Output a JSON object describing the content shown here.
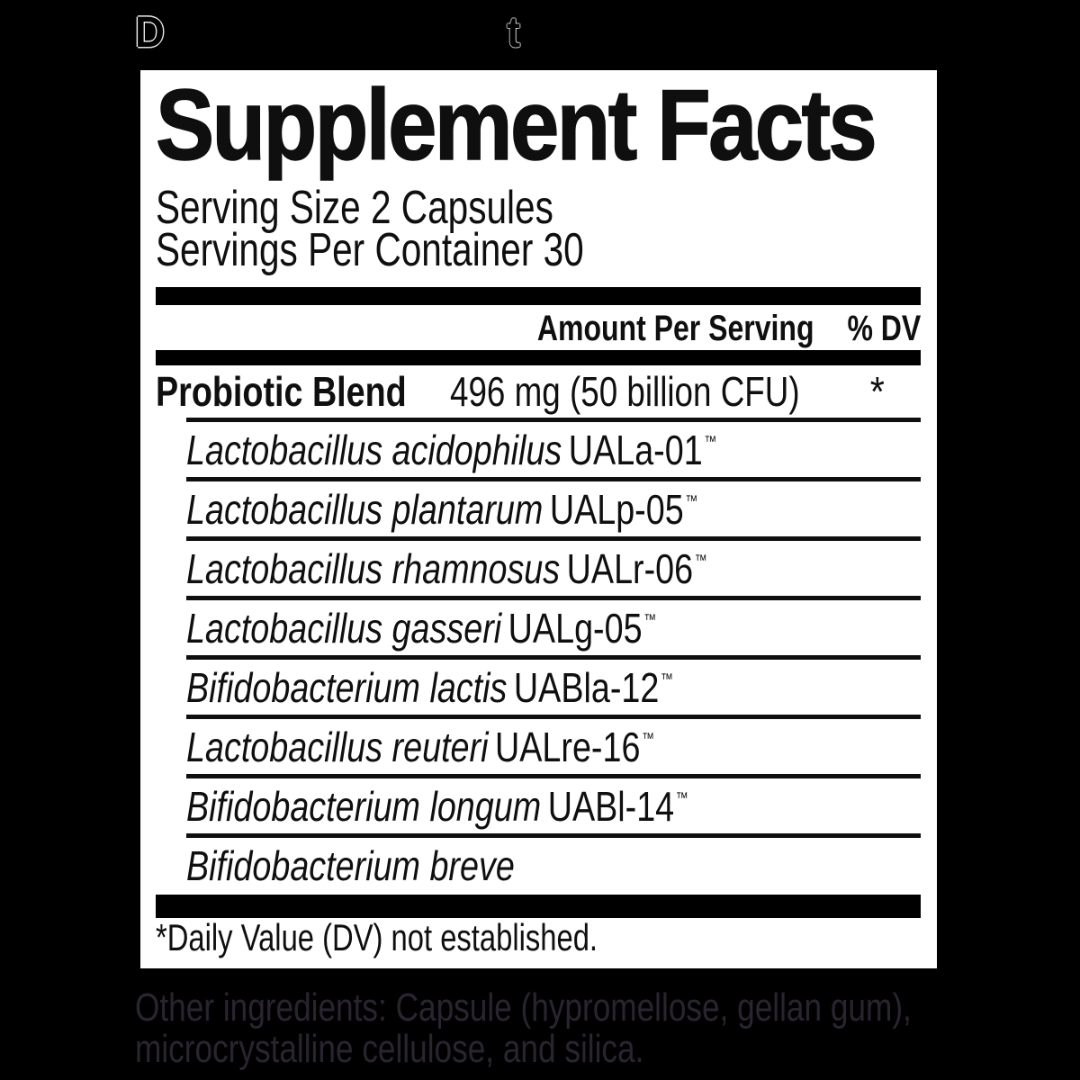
{
  "top_heading": {
    "text": "Dietary Supplement"
  },
  "panel": {
    "title": "Supplement Facts",
    "serving_size": "Serving Size 2 Capsules",
    "servings_per_container": "Servings Per Container 30",
    "column_headers": {
      "amount": "Amount Per Serving",
      "dv": "% DV"
    },
    "blend": {
      "name": "Probiotic Blend",
      "amount": "496 mg (50 billion CFU)",
      "dv": "*"
    },
    "ingredients": [
      {
        "species": "Lactobacillus acidophilus",
        "strain": "UALa-01",
        "tm": "™"
      },
      {
        "species": "Lactobacillus plantarum",
        "strain": "UALp-05",
        "tm": "™"
      },
      {
        "species": "Lactobacillus rhamnosus",
        "strain": "UALr-06",
        "tm": "™"
      },
      {
        "species": "Lactobacillus gasseri",
        "strain": "UALg-05",
        "tm": "™"
      },
      {
        "species": "Bifidobacterium lactis",
        "strain": "UABla-12",
        "tm": "™"
      },
      {
        "species": "Lactobacillus reuteri",
        "strain": "UALre-16",
        "tm": "™"
      },
      {
        "species": "Bifidobacterium longum",
        "strain": "UABl-14",
        "tm": "™"
      },
      {
        "species": "Bifidobacterium breve",
        "strain": "",
        "tm": ""
      }
    ],
    "footnote": "*Daily Value (DV) not established."
  },
  "other_ingredients": {
    "line1": "Other ingredients: Capsule (hypromellose, gellan gum),",
    "line2": "microcrystalline cellulose, and silica."
  },
  "colors": {
    "page_background": "#000000",
    "panel_background": "#ffffff",
    "ink": "#0f0f0f",
    "footer_ink": "#2a2430"
  }
}
